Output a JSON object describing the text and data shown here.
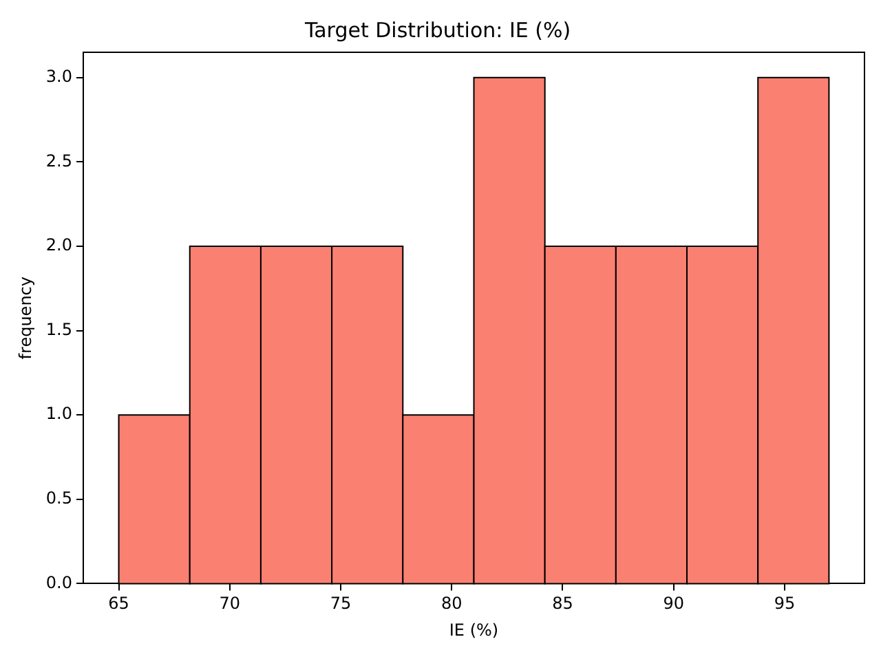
{
  "chart_data": {
    "type": "histogram",
    "title": "Target Distribution: IE (%)",
    "xlabel": "IE (%)",
    "ylabel": "frequency",
    "bins": [
      65,
      68.2,
      71.4,
      74.6,
      77.8,
      81,
      84.2,
      87.4,
      90.6,
      93.8,
      97
    ],
    "values": [
      1,
      2,
      2,
      2,
      1,
      3,
      2,
      2,
      2,
      3
    ],
    "color": "#fa8072",
    "xlim": [
      63.4,
      98.6
    ],
    "xticks": [
      65,
      70,
      75,
      80,
      85,
      90,
      95
    ],
    "ylim": [
      0,
      3.15
    ],
    "yticks": [
      {
        "value": 0,
        "label": "0.0"
      },
      {
        "value": 0.5,
        "label": "0.5"
      },
      {
        "value": 1,
        "label": "1.0"
      },
      {
        "value": 1.5,
        "label": "1.5"
      },
      {
        "value": 2,
        "label": "2.0"
      },
      {
        "value": 2.5,
        "label": "2.5"
      },
      {
        "value": 3,
        "label": "3.0"
      }
    ],
    "grid": false,
    "legend": false
  }
}
